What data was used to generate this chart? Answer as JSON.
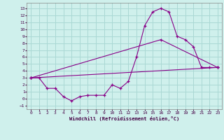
{
  "xlabel": "Windchill (Refroidissement éolien,°C)",
  "bg_color": "#cff0ec",
  "grid_color": "#aad8d4",
  "line_color": "#880088",
  "xlim": [
    -0.5,
    23.5
  ],
  "ylim": [
    -1.5,
    13.8
  ],
  "xticks": [
    0,
    1,
    2,
    3,
    4,
    5,
    6,
    7,
    8,
    9,
    10,
    11,
    12,
    13,
    14,
    15,
    16,
    17,
    18,
    19,
    20,
    21,
    22,
    23
  ],
  "yticks": [
    -1,
    0,
    1,
    2,
    3,
    4,
    5,
    6,
    7,
    8,
    9,
    10,
    11,
    12,
    13
  ],
  "series1_x": [
    0,
    1,
    2,
    3,
    4,
    5,
    6,
    7,
    8,
    9,
    10,
    11,
    12,
    13,
    14,
    15,
    16,
    17,
    18,
    19,
    20,
    21,
    22,
    23
  ],
  "series1_y": [
    3.0,
    3.0,
    1.5,
    1.5,
    0.3,
    -0.3,
    0.3,
    0.5,
    0.5,
    0.5,
    2.0,
    1.5,
    2.5,
    6.0,
    10.5,
    12.5,
    13.0,
    12.5,
    9.0,
    8.5,
    7.5,
    4.5,
    4.5,
    4.5
  ],
  "series2_x": [
    0,
    23
  ],
  "series2_y": [
    3.0,
    4.5
  ],
  "series3_x": [
    0,
    16,
    23
  ],
  "series3_y": [
    3.0,
    8.5,
    4.5
  ]
}
